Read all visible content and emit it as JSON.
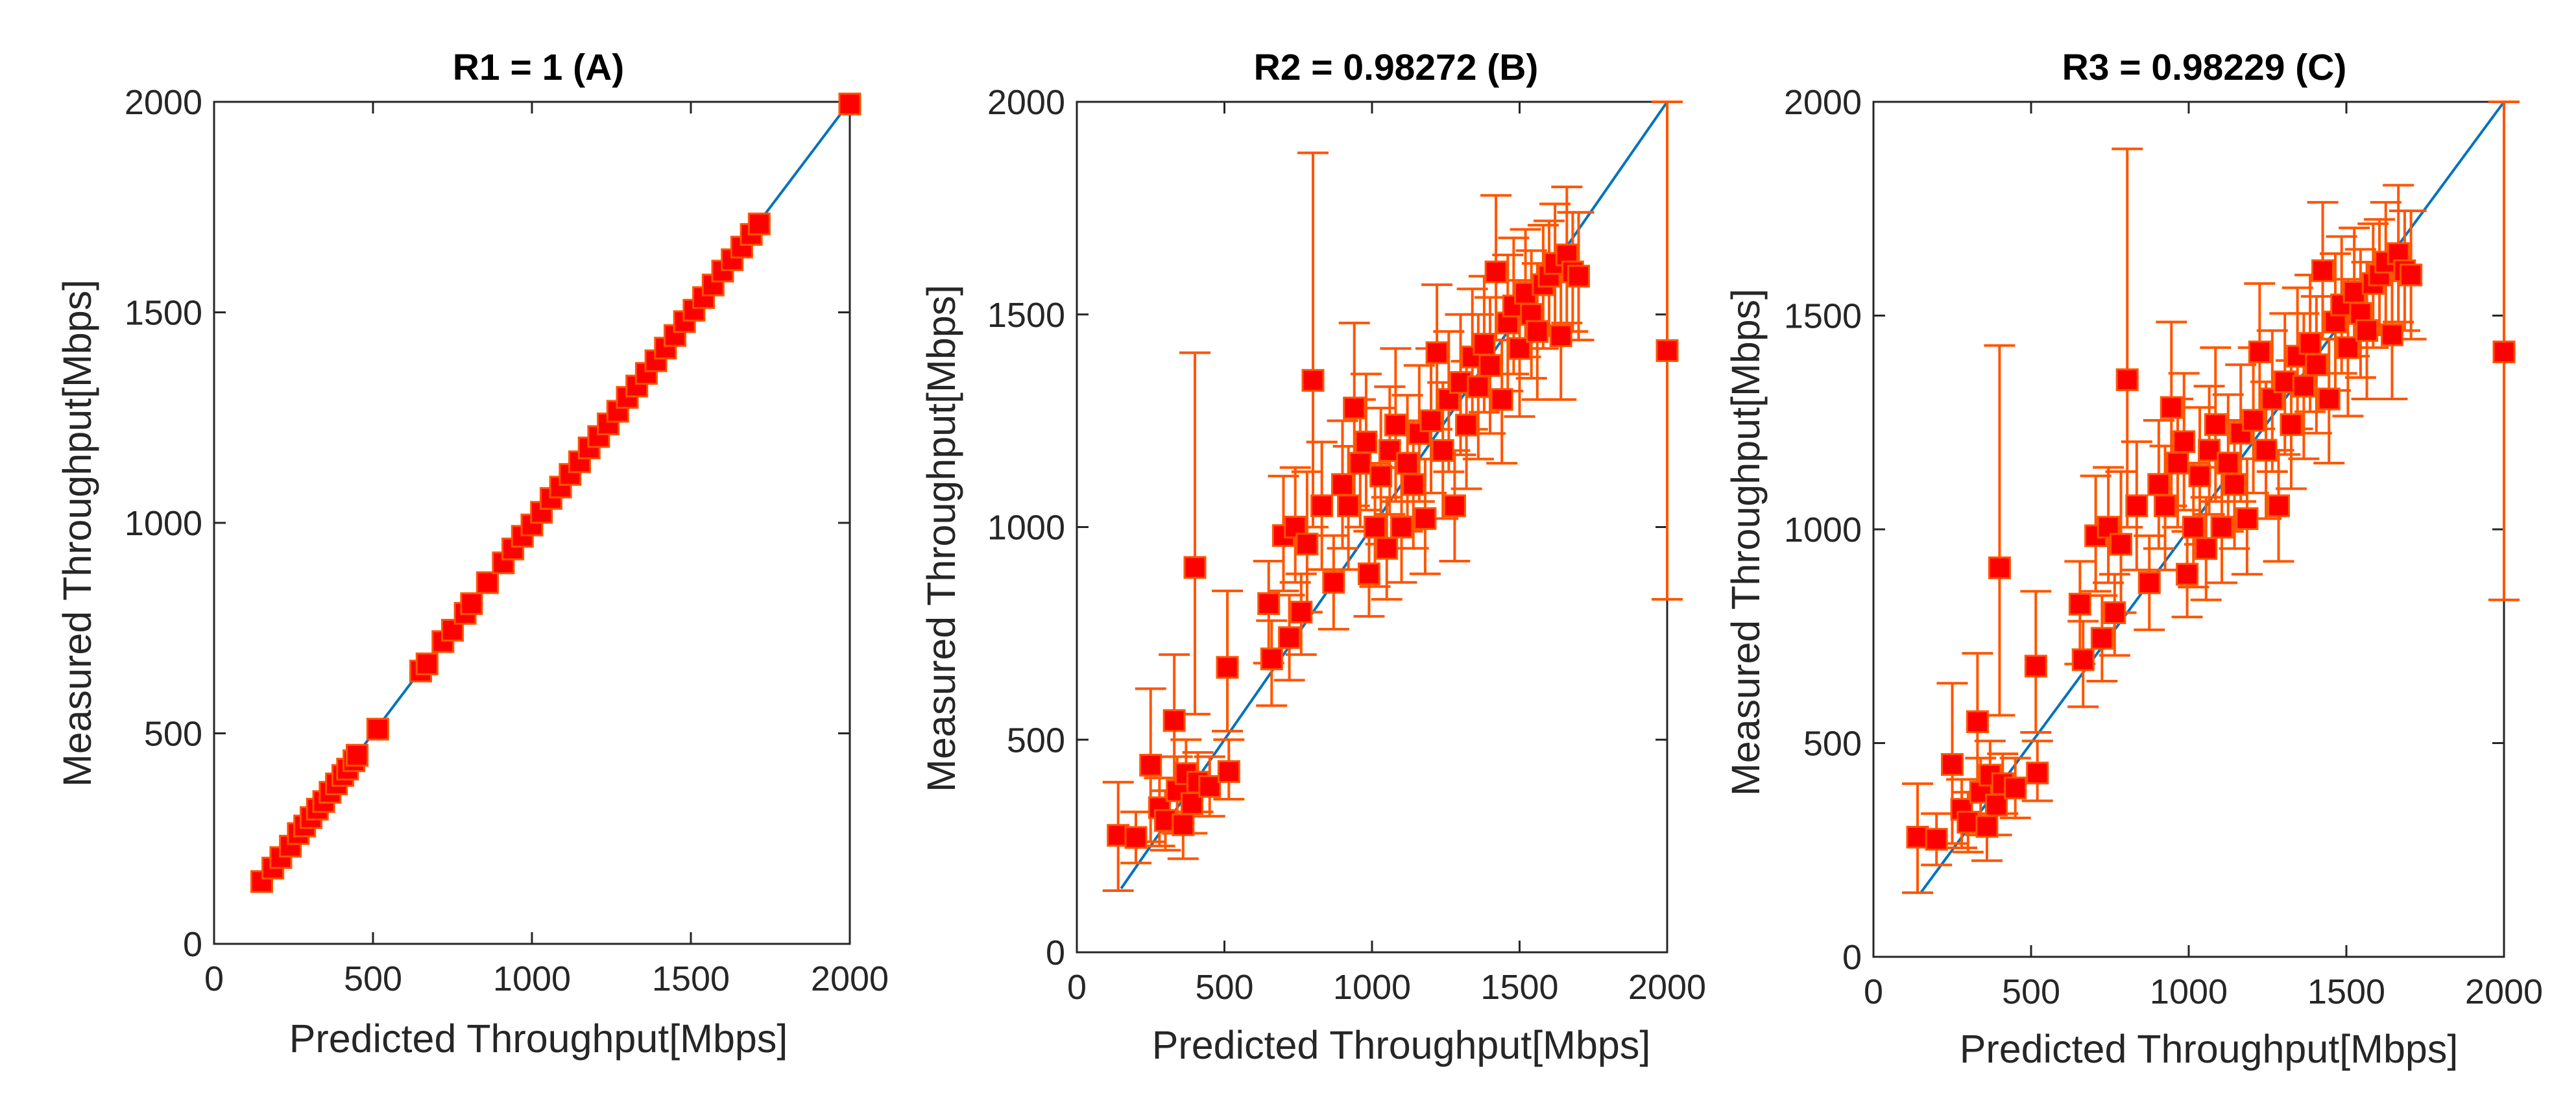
{
  "chart_data": [
    {
      "type": "scatter",
      "title": "R1 = 1 (A)",
      "xlabel": "Predicted Throughput[Mbps]",
      "ylabel": "Measured Throughput[Mbps]",
      "xlim": [
        0,
        2000
      ],
      "ylim": [
        0,
        2000
      ],
      "xticks": [
        "0",
        "500",
        "1000",
        "1500",
        "2000"
      ],
      "yticks": [
        "0",
        "500",
        "1000",
        "1500",
        "2000"
      ],
      "grid": false,
      "reference_line": {
        "from": [
          150,
          150
        ],
        "to": [
          2000,
          2000
        ],
        "color": "#0072BD"
      },
      "marker_color": "#FF0000",
      "errorbar_color": "#FF5500",
      "points": [
        [
          150,
          148
        ],
        [
          185,
          180
        ],
        [
          210,
          205
        ],
        [
          240,
          232
        ],
        [
          265,
          262
        ],
        [
          285,
          280
        ],
        [
          305,
          300
        ],
        [
          325,
          320
        ],
        [
          345,
          338
        ],
        [
          365,
          360
        ],
        [
          385,
          380
        ],
        [
          405,
          400
        ],
        [
          420,
          415
        ],
        [
          440,
          435
        ],
        [
          450,
          448
        ],
        [
          515,
          510
        ],
        [
          650,
          648
        ],
        [
          670,
          665
        ],
        [
          720,
          718
        ],
        [
          750,
          745
        ],
        [
          790,
          785
        ],
        [
          810,
          808
        ],
        [
          860,
          858
        ],
        [
          910,
          905
        ],
        [
          940,
          938
        ],
        [
          970,
          968
        ],
        [
          1000,
          995
        ],
        [
          1030,
          1025
        ],
        [
          1060,
          1058
        ],
        [
          1090,
          1085
        ],
        [
          1120,
          1115
        ],
        [
          1150,
          1145
        ],
        [
          1180,
          1178
        ],
        [
          1210,
          1205
        ],
        [
          1240,
          1235
        ],
        [
          1270,
          1265
        ],
        [
          1300,
          1298
        ],
        [
          1330,
          1325
        ],
        [
          1360,
          1355
        ],
        [
          1390,
          1385
        ],
        [
          1420,
          1415
        ],
        [
          1450,
          1445
        ],
        [
          1480,
          1478
        ],
        [
          1510,
          1505
        ],
        [
          1540,
          1535
        ],
        [
          1570,
          1565
        ],
        [
          1600,
          1598
        ],
        [
          1630,
          1625
        ],
        [
          1660,
          1655
        ],
        [
          1690,
          1685
        ],
        [
          1715,
          1710
        ],
        [
          2000,
          1995
        ]
      ]
    },
    {
      "type": "scatter",
      "title": "R2 = 0.98272 (B)",
      "xlabel": "Predicted Throughput[Mbps]",
      "ylabel": "Measured Throughput[Mbps]",
      "xlim": [
        0,
        2000
      ],
      "ylim": [
        0,
        2000
      ],
      "xticks": [
        "0",
        "500",
        "1000",
        "1500",
        "2000"
      ],
      "yticks": [
        "0",
        "500",
        "1000",
        "1500",
        "2000"
      ],
      "grid": false,
      "reference_line": {
        "from": [
          150,
          150
        ],
        "to": [
          2000,
          2000
        ],
        "color": "#0072BD"
      },
      "marker_color": "#FF0000",
      "errorbar_color": "#FF5500",
      "points": [
        [
          140,
          275,
          145,
          400
        ],
        [
          200,
          270,
          210,
          330
        ],
        [
          250,
          440,
          260,
          620
        ],
        [
          280,
          340,
          250,
          410
        ],
        [
          300,
          310,
          240,
          380
        ],
        [
          330,
          545,
          380,
          700
        ],
        [
          340,
          380,
          280,
          460
        ],
        [
          360,
          300,
          220,
          380
        ],
        [
          370,
          420,
          330,
          500
        ],
        [
          390,
          350,
          280,
          420
        ],
        [
          400,
          905,
          560,
          1410
        ],
        [
          410,
          400,
          330,
          470
        ],
        [
          450,
          390,
          320,
          460
        ],
        [
          510,
          670,
          520,
          850
        ],
        [
          515,
          425,
          360,
          500
        ],
        [
          650,
          820,
          680,
          920
        ],
        [
          660,
          690,
          580,
          780
        ],
        [
          700,
          980,
          850,
          1120
        ],
        [
          720,
          740,
          640,
          840
        ],
        [
          740,
          1000,
          870,
          1140
        ],
        [
          760,
          800,
          700,
          890
        ],
        [
          780,
          960,
          800,
          1130
        ],
        [
          800,
          1345,
          1000,
          1880
        ],
        [
          830,
          1050,
          900,
          1200
        ],
        [
          870,
          870,
          760,
          980
        ],
        [
          900,
          1100,
          950,
          1250
        ],
        [
          920,
          1050,
          900,
          1190
        ],
        [
          940,
          1280,
          1050,
          1480
        ],
        [
          960,
          1150,
          1000,
          1300
        ],
        [
          980,
          1200,
          1040,
          1360
        ],
        [
          990,
          890,
          790,
          990
        ],
        [
          1010,
          1000,
          860,
          1150
        ],
        [
          1030,
          1120,
          960,
          1280
        ],
        [
          1050,
          950,
          830,
          1070
        ],
        [
          1060,
          1180,
          1030,
          1330
        ],
        [
          1080,
          1240,
          1060,
          1420
        ],
        [
          1100,
          1000,
          870,
          1140
        ],
        [
          1120,
          1150,
          990,
          1310
        ],
        [
          1140,
          1100,
          950,
          1250
        ],
        [
          1160,
          1220,
          1060,
          1380
        ],
        [
          1180,
          1020,
          890,
          1160
        ],
        [
          1200,
          1250,
          1080,
          1420
        ],
        [
          1220,
          1410,
          1230,
          1570
        ],
        [
          1240,
          1180,
          1020,
          1340
        ],
        [
          1260,
          1300,
          1130,
          1460
        ],
        [
          1280,
          1050,
          920,
          1180
        ],
        [
          1300,
          1340,
          1170,
          1500
        ],
        [
          1320,
          1240,
          1090,
          1390
        ],
        [
          1340,
          1400,
          1230,
          1560
        ],
        [
          1360,
          1330,
          1160,
          1500
        ],
        [
          1380,
          1430,
          1270,
          1590
        ],
        [
          1400,
          1380,
          1220,
          1540
        ],
        [
          1420,
          1600,
          1440,
          1780
        ],
        [
          1440,
          1300,
          1150,
          1440
        ],
        [
          1460,
          1480,
          1320,
          1640
        ],
        [
          1480,
          1520,
          1360,
          1680
        ],
        [
          1500,
          1420,
          1260,
          1580
        ],
        [
          1520,
          1550,
          1400,
          1700
        ],
        [
          1540,
          1500,
          1350,
          1650
        ],
        [
          1560,
          1460,
          1300,
          1620
        ],
        [
          1580,
          1570,
          1420,
          1710
        ],
        [
          1600,
          1590,
          1450,
          1720
        ],
        [
          1620,
          1620,
          1470,
          1760
        ],
        [
          1640,
          1450,
          1300,
          1600
        ],
        [
          1660,
          1640,
          1480,
          1800
        ],
        [
          1680,
          1600,
          1460,
          1740
        ],
        [
          1700,
          1590,
          1440,
          1740
        ],
        [
          2000,
          1415,
          830,
          2000
        ]
      ]
    },
    {
      "type": "scatter",
      "title": "R3 = 0.98229 (C)",
      "xlabel": "Predicted Throughput[Mbps]",
      "ylabel": "Measured Throughput[Mbps]",
      "xlim": [
        0,
        2000
      ],
      "ylim": [
        0,
        2000
      ],
      "xticks": [
        "0",
        "500",
        "1000",
        "1500",
        "2000"
      ],
      "yticks": [
        "0",
        "500",
        "1000",
        "1500",
        "2000"
      ],
      "grid": false,
      "reference_line": {
        "from": [
          150,
          150
        ],
        "to": [
          2000,
          2000
        ],
        "color": "#0072BD"
      },
      "marker_color": "#FF0000",
      "errorbar_color": "#FF5500",
      "points": [
        [
          140,
          280,
          150,
          405
        ],
        [
          200,
          275,
          215,
          335
        ],
        [
          250,
          450,
          265,
          640
        ],
        [
          280,
          345,
          255,
          415
        ],
        [
          300,
          315,
          245,
          385
        ],
        [
          330,
          550,
          385,
          710
        ],
        [
          340,
          385,
          285,
          465
        ],
        [
          360,
          305,
          225,
          385
        ],
        [
          370,
          425,
          335,
          505
        ],
        [
          390,
          355,
          285,
          425
        ],
        [
          400,
          910,
          565,
          1430
        ],
        [
          410,
          405,
          335,
          475
        ],
        [
          450,
          395,
          325,
          465
        ],
        [
          515,
          680,
          525,
          855
        ],
        [
          520,
          430,
          365,
          505
        ],
        [
          655,
          825,
          685,
          925
        ],
        [
          665,
          695,
          585,
          785
        ],
        [
          705,
          985,
          855,
          1125
        ],
        [
          725,
          745,
          645,
          845
        ],
        [
          745,
          1005,
          875,
          1145
        ],
        [
          765,
          805,
          705,
          895
        ],
        [
          785,
          965,
          805,
          1135
        ],
        [
          805,
          1350,
          1005,
          1890
        ],
        [
          835,
          1055,
          905,
          1205
        ],
        [
          875,
          875,
          765,
          985
        ],
        [
          905,
          1105,
          955,
          1255
        ],
        [
          925,
          1055,
          905,
          1195
        ],
        [
          945,
          1285,
          1055,
          1485
        ],
        [
          965,
          1155,
          1005,
          1305
        ],
        [
          985,
          1205,
          1045,
          1365
        ],
        [
          995,
          895,
          795,
          995
        ],
        [
          1015,
          1005,
          865,
          1155
        ],
        [
          1035,
          1125,
          965,
          1285
        ],
        [
          1055,
          955,
          835,
          1075
        ],
        [
          1065,
          1185,
          1035,
          1335
        ],
        [
          1085,
          1245,
          1065,
          1425
        ],
        [
          1105,
          1005,
          875,
          1145
        ],
        [
          1125,
          1155,
          995,
          1315
        ],
        [
          1145,
          1105,
          955,
          1255
        ],
        [
          1165,
          1225,
          1065,
          1385
        ],
        [
          1185,
          1025,
          895,
          1165
        ],
        [
          1205,
          1255,
          1085,
          1425
        ],
        [
          1225,
          1415,
          1235,
          1575
        ],
        [
          1245,
          1185,
          1025,
          1345
        ],
        [
          1265,
          1305,
          1135,
          1465
        ],
        [
          1285,
          1055,
          925,
          1185
        ],
        [
          1305,
          1345,
          1175,
          1505
        ],
        [
          1325,
          1245,
          1095,
          1395
        ],
        [
          1345,
          1405,
          1235,
          1565
        ],
        [
          1365,
          1335,
          1165,
          1505
        ],
        [
          1385,
          1435,
          1275,
          1595
        ],
        [
          1405,
          1385,
          1225,
          1545
        ],
        [
          1425,
          1605,
          1445,
          1765
        ],
        [
          1445,
          1305,
          1155,
          1445
        ],
        [
          1465,
          1485,
          1325,
          1645
        ],
        [
          1485,
          1525,
          1365,
          1685
        ],
        [
          1505,
          1425,
          1265,
          1585
        ],
        [
          1525,
          1555,
          1405,
          1705
        ],
        [
          1545,
          1505,
          1355,
          1655
        ],
        [
          1565,
          1465,
          1305,
          1625
        ],
        [
          1585,
          1575,
          1425,
          1715
        ],
        [
          1605,
          1595,
          1455,
          1725
        ],
        [
          1625,
          1625,
          1475,
          1765
        ],
        [
          1645,
          1455,
          1305,
          1605
        ],
        [
          1665,
          1645,
          1485,
          1805
        ],
        [
          1685,
          1605,
          1465,
          1745
        ],
        [
          1705,
          1595,
          1445,
          1745
        ],
        [
          2000,
          1415,
          835,
          2000
        ]
      ]
    }
  ]
}
